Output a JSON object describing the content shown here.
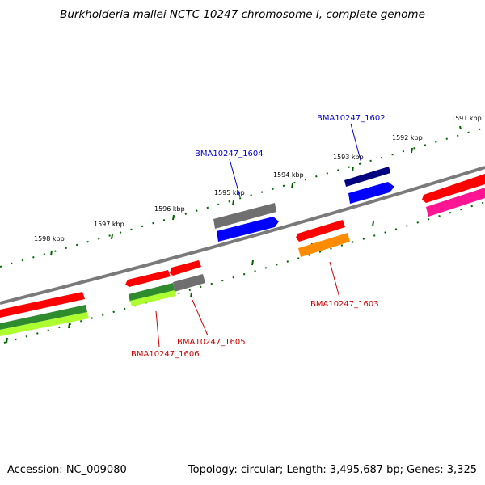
{
  "title": "Burkholderia mallei NCTC 10247 chromosome I, complete genome",
  "footer": {
    "accession": "Accession: NC_009080",
    "stats": "Topology: circular; Length: 3,495,687 bp; Genes: 3,325"
  },
  "tick_labels": [
    "1591 kbp",
    "1592 kbp",
    "1593 kbp",
    "1594 kbp",
    "1595 kbp",
    "1596 kbp",
    "1597 kbp",
    "1598 kbp"
  ],
  "gene_labels": [
    {
      "text": "BMA10247_1602",
      "color": "#0000cc"
    },
    {
      "text": "BMA10247_1604",
      "color": "#0000cc"
    },
    {
      "text": "BMA10247_1603",
      "color": "#cc0000"
    },
    {
      "text": "BMA10247_1605",
      "color": "#cc0000"
    },
    {
      "text": "BMA10247_1606",
      "color": "#cc0000"
    }
  ],
  "colors": {
    "backbone": "#808080",
    "forward_cds": "#ff0000",
    "reverse_cds": "#0000ff",
    "gene_gray": "#707070",
    "navy": "#000080",
    "orange": "#ff8c00",
    "magenta": "#ff1493",
    "dark_green": "#228b22",
    "light_green": "#adff2f",
    "ticks": "#006400"
  }
}
